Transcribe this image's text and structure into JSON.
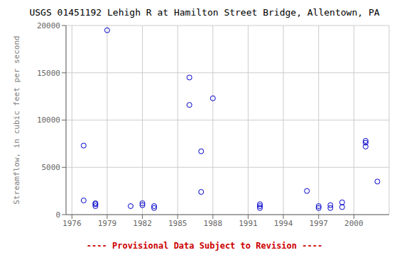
{
  "chart_data": {
    "type": "scatter",
    "title": "USGS 01451192 Lehigh R at Hamilton Street Bridge, Allentown, PA",
    "ylabel": "Streamflow, in cubic feet per second",
    "annotations": [
      {
        "text": "---- Provisional Data Subject to Revision ----",
        "color": "#cc0000"
      }
    ],
    "color": "#0000cc",
    "marker": "circle",
    "grid": true,
    "xlim": [
      1975.5,
      2003
    ],
    "ylim": [
      0,
      20000
    ],
    "xticks": [
      1976,
      1979,
      1982,
      1985,
      1988,
      1991,
      1994,
      1997,
      2000
    ],
    "yticks": [
      0,
      5000,
      10000,
      15000,
      20000
    ],
    "x": [
      1977,
      1977,
      1978,
      1978,
      1978,
      1979,
      1981,
      1982,
      1982,
      1983,
      1983,
      1986,
      1986,
      1987,
      1987,
      1988,
      1992,
      1992,
      1992,
      1996,
      1997,
      1997,
      1998,
      1998,
      1999,
      1999,
      2001,
      2001,
      2001,
      2002
    ],
    "values": [
      7300,
      1500,
      1200,
      900,
      1100,
      19500,
      900,
      1000,
      1200,
      900,
      700,
      14500,
      11600,
      6700,
      2400,
      12300,
      700,
      900,
      1100,
      2500,
      700,
      900,
      1000,
      700,
      800,
      1300,
      7800,
      7200,
      7600,
      3500
    ]
  }
}
